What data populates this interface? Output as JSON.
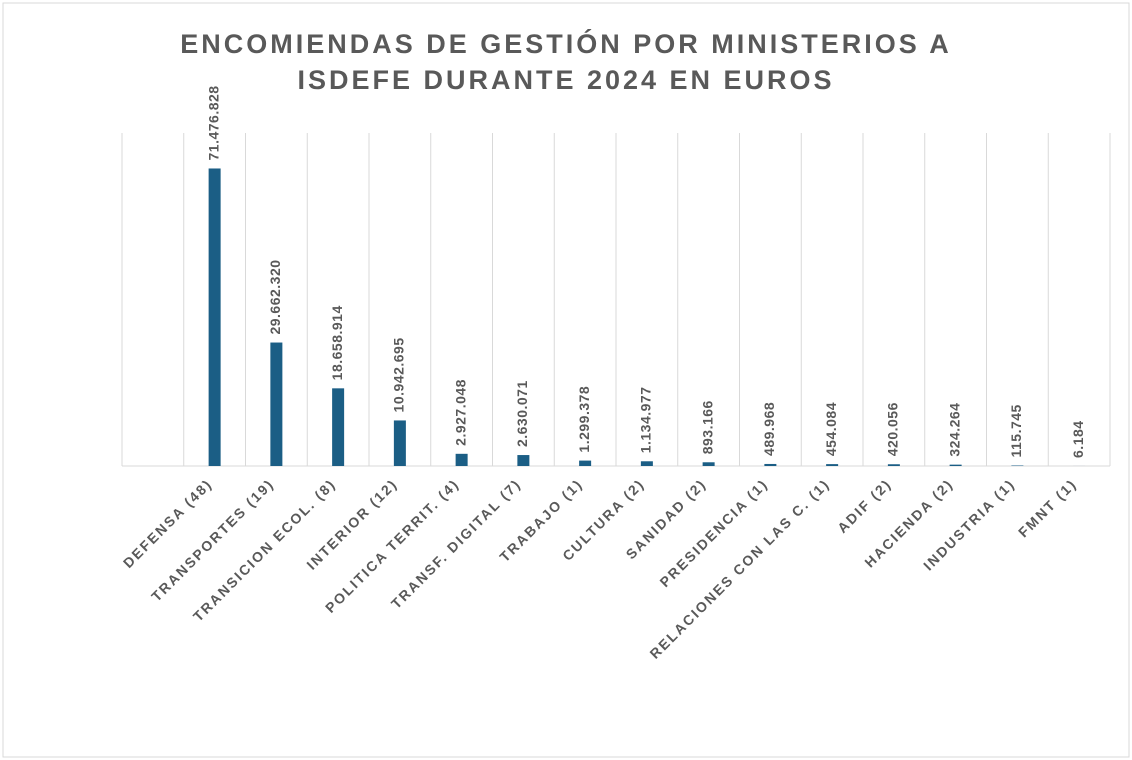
{
  "chart_data": {
    "type": "bar",
    "title": [
      "ENCOMIENDAS DE GESTIÓN POR MINISTERIOS A",
      "ISDEFE DURANTE 2024 EN EUROS"
    ],
    "categories": [
      null,
      "DEFENSA (48)",
      "TRANSPORTES (19)",
      "TRANSICION ECOL. (8)",
      "INTERIOR (12)",
      "POLITICA TERRIT. (4)",
      "TRANSF. DIGITAL (7)",
      "TRABAJO (1)",
      "CULTURA (2)",
      "SANIDAD (2)",
      "PRESIDENCIA (1)",
      "RELACIONES CON LAS C. (1)",
      "ADIF (2)",
      "HACIENDA (2)",
      "INDUSTRIA (1)",
      "FMNT (1)"
    ],
    "values": [
      null,
      71476828,
      29662320,
      18658914,
      10942695,
      2927048,
      2630071,
      1299378,
      1134977,
      893166,
      489968,
      454084,
      420056,
      324264,
      115745,
      6184
    ],
    "value_labels": [
      null,
      "71.476.828",
      "29.662.320",
      "18.658.914",
      "10.942.695",
      "2.927.048",
      "2.630.071",
      "1.299.378",
      "1.134.977",
      "893.166",
      "489.968",
      "454.084",
      "420.056",
      "324.264",
      "115.745",
      "6.184"
    ],
    "color": "#1b5e85",
    "ylim": [
      0,
      80000000
    ]
  }
}
